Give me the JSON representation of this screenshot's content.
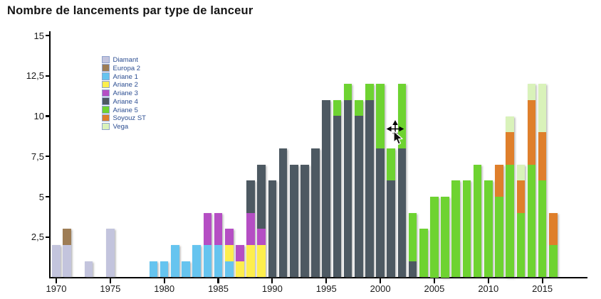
{
  "title": "Nombre de lancements par type de lanceur",
  "axes": {
    "y": {
      "tick_values": [
        15,
        12.5,
        10,
        7.5,
        5,
        2.5
      ],
      "tick_labels": [
        "15",
        "12,5",
        "10",
        "7,5",
        "5",
        "2,5"
      ]
    },
    "x": {
      "tick_values": [
        1970,
        1975,
        1980,
        1985,
        1990,
        1995,
        2000,
        2005,
        2010,
        2015
      ],
      "tick_labels": [
        "1970",
        "1975",
        "1980",
        "1985",
        "1990",
        "1995",
        "2000",
        "2005",
        "2010",
        "2015"
      ]
    }
  },
  "cursor": {
    "type": "move-pan-arrow"
  },
  "chart_data": {
    "type": "bar",
    "stacked": true,
    "title": "Nombre de lancements par type de lanceur",
    "xlabel": "",
    "ylabel": "",
    "x_range": [
      1970,
      2016
    ],
    "ylim": [
      0,
      15
    ],
    "grid": false,
    "legend_position": "upper-left-inside",
    "series": [
      {
        "name": "Diamant",
        "color": "#c3c4dd",
        "values": {
          "1970": 2,
          "1971": 2,
          "1973": 1,
          "1975": 3
        }
      },
      {
        "name": "Europa 2",
        "color": "#9e7d55",
        "values": {
          "1971": 1
        }
      },
      {
        "name": "Ariane 1",
        "color": "#66c4ef",
        "values": {
          "1979": 1,
          "1980": 1,
          "1981": 2,
          "1982": 1,
          "1983": 2,
          "1984": 2,
          "1985": 2,
          "1986": 1
        }
      },
      {
        "name": "Ariane 2",
        "color": "#fdee4d",
        "values": {
          "1986": 1,
          "1987": 1,
          "1988": 2,
          "1989": 2
        }
      },
      {
        "name": "Ariane 3",
        "color": "#b54ec4",
        "values": {
          "1984": 2,
          "1985": 2,
          "1986": 1,
          "1987": 1,
          "1988": 2,
          "1989": 1
        }
      },
      {
        "name": "Ariane 4",
        "color": "#4d5962",
        "values": {
          "1988": 2,
          "1989": 4,
          "1990": 6,
          "1991": 8,
          "1992": 7,
          "1993": 7,
          "1994": 8,
          "1995": 11,
          "1996": 10,
          "1997": 11,
          "1998": 10,
          "1999": 11,
          "2000": 8,
          "2001": 6,
          "2002": 8,
          "2003": 1
        }
      },
      {
        "name": "Ariane 5",
        "color": "#6ed331",
        "values": {
          "1996": 1,
          "1997": 1,
          "1998": 1,
          "1999": 1,
          "2000": 4,
          "2001": 2,
          "2002": 4,
          "2003": 3,
          "2004": 3,
          "2005": 5,
          "2006": 5,
          "2007": 6,
          "2008": 6,
          "2009": 7,
          "2010": 6,
          "2011": 5,
          "2012": 7,
          "2013": 4,
          "2014": 7,
          "2015": 6,
          "2016": 2
        }
      },
      {
        "name": "Soyouz ST",
        "color": "#df7f2b",
        "values": {
          "2011": 2,
          "2012": 2,
          "2013": 2,
          "2014": 4,
          "2015": 3,
          "2016": 2
        }
      },
      {
        "name": "Vega",
        "color": "#d9f2ba",
        "values": {
          "2012": 1,
          "2013": 1,
          "2014": 1,
          "2015": 3
        }
      }
    ]
  }
}
